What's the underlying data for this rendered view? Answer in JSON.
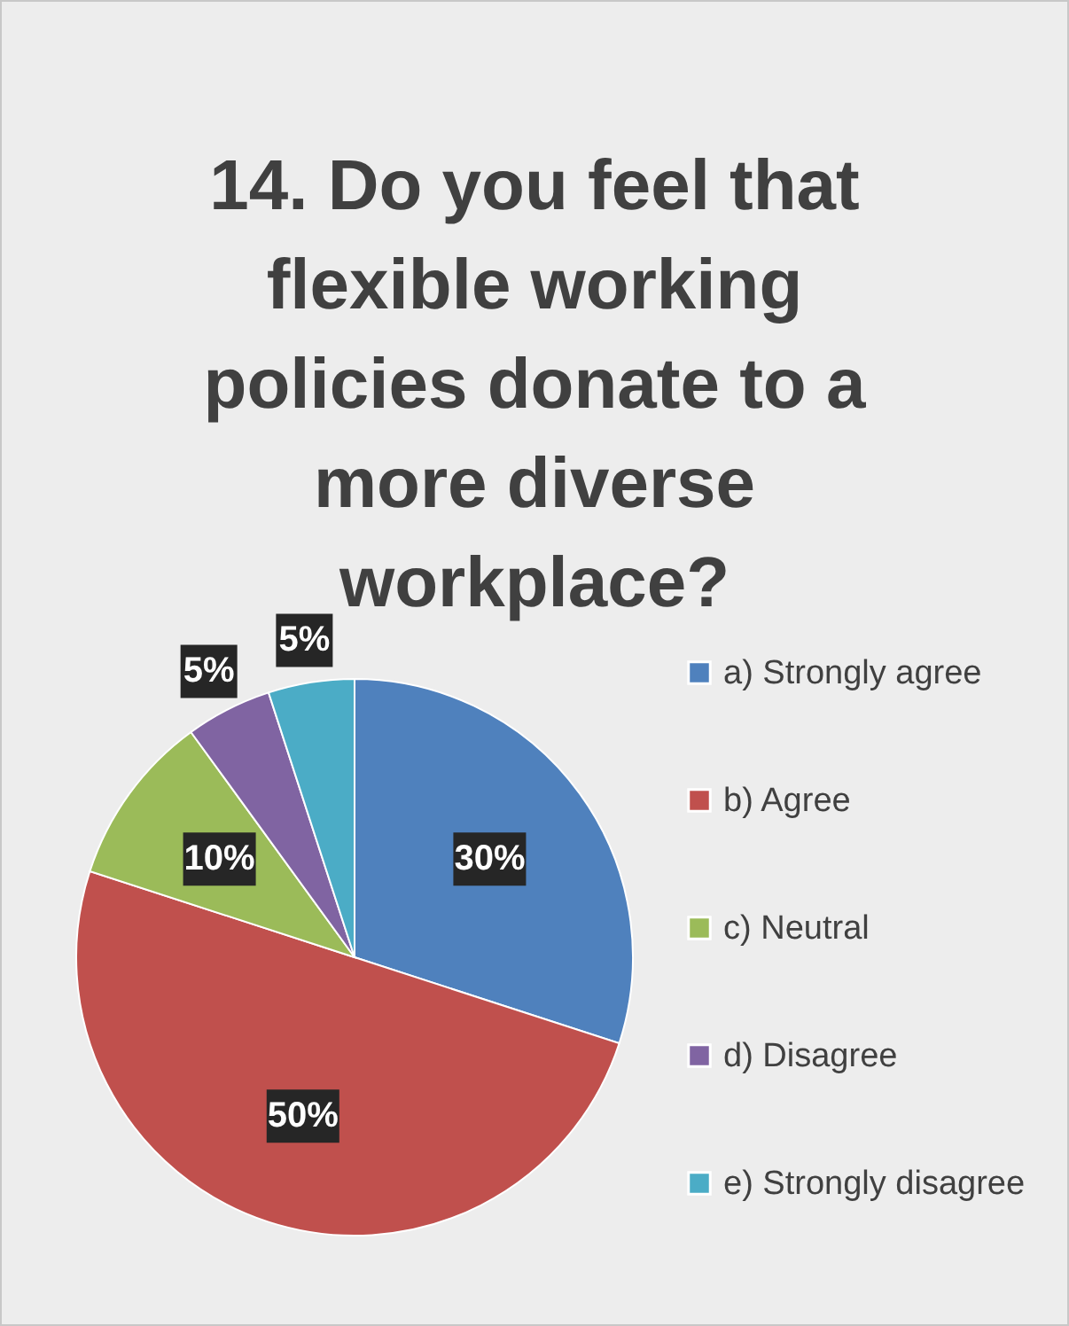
{
  "chart_data": {
    "type": "pie",
    "title": "14. Do you feel that flexible working policies donate to a more diverse workplace?",
    "categories": [
      "a) Strongly agree",
      "b) Agree",
      "c) Neutral",
      "d) Disagree",
      "e) Strongly disagree"
    ],
    "values": [
      30,
      50,
      10,
      5,
      5
    ],
    "colors": [
      "#4f81bd",
      "#c0504d",
      "#9bbb59",
      "#8064a2",
      "#4bacc6"
    ],
    "value_labels": [
      "30%",
      "50%",
      "10%",
      "5%",
      "5%"
    ],
    "legend": "right"
  }
}
